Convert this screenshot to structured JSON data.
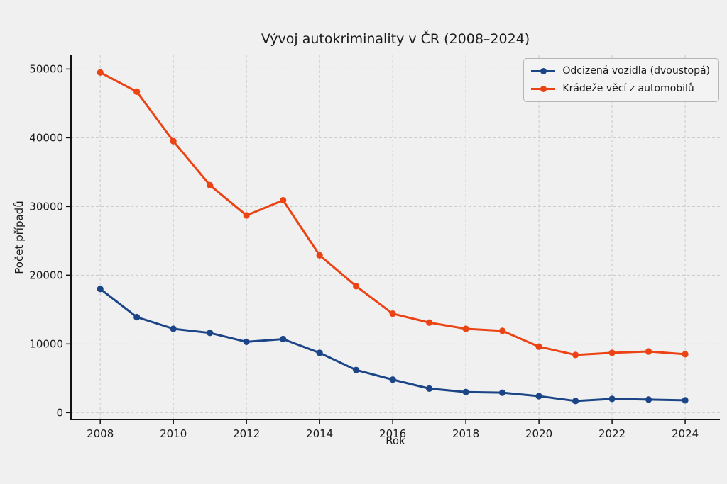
{
  "chart_data": {
    "type": "line",
    "title": "Vývoj autokriminality v ČR (2008–2024)",
    "xlabel": "Rok",
    "ylabel": "Počet případů",
    "x": [
      2008,
      2009,
      2010,
      2011,
      2012,
      2013,
      2014,
      2015,
      2016,
      2017,
      2018,
      2019,
      2020,
      2021,
      2022,
      2023,
      2024
    ],
    "series": [
      {
        "name": "Odcizená vozidla (dvoustopá)",
        "color": "#1b4587",
        "values": [
          18000,
          13900,
          12200,
          11600,
          10300,
          10700,
          8700,
          6200,
          4800,
          3500,
          3000,
          2900,
          2400,
          1700,
          2000,
          1900,
          1800
        ]
      },
      {
        "name": "Krádeže věcí z automobilů",
        "color": "#ec4315",
        "values": [
          49500,
          46700,
          39500,
          33100,
          28700,
          30900,
          22900,
          18400,
          14400,
          13100,
          12200,
          11900,
          9600,
          8400,
          8700,
          8900,
          8500
        ]
      }
    ],
    "xticks": [
      2008,
      2010,
      2012,
      2014,
      2016,
      2018,
      2020,
      2022,
      2024
    ],
    "yticks": [
      0,
      10000,
      20000,
      30000,
      40000,
      50000
    ],
    "xlim": [
      2007.2,
      2024.95
    ],
    "ylim": [
      -1000,
      52000
    ],
    "grid": true,
    "legend_position": "upper right",
    "colors": {
      "background": "#f0f0f0",
      "gridline": "#c9c9c9",
      "spine": "#111111",
      "text": "#1a1a1a"
    }
  }
}
